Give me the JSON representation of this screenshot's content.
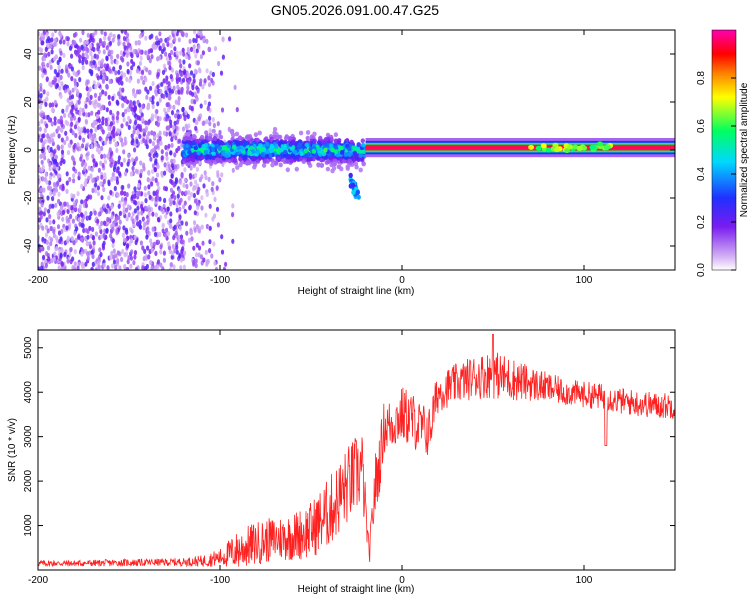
{
  "title": "GN05.2026.091.00.47.G25",
  "chart_data": [
    {
      "type": "heatmap",
      "title": "GN05.2026.091.00.47.G25",
      "xlabel": "Height of straight line (km)",
      "ylabel": "Frequency (Hz)",
      "xlim": [
        -200,
        150
      ],
      "ylim": [
        -50,
        50
      ],
      "xticks": [
        -200,
        -100,
        0,
        100
      ],
      "yticks": [
        -40,
        -20,
        0,
        20,
        40
      ],
      "colorbar": {
        "label": "Normalized spectral amplitude",
        "range": [
          0.0,
          1.0
        ],
        "ticks": [
          "0.0",
          "0.2",
          "0.4",
          "0.6",
          "0.8"
        ],
        "colors": [
          "#e6d0f5",
          "#7a1cf0",
          "#3030ff",
          "#00c8ff",
          "#00ff80",
          "#ffff00",
          "#ff8000",
          "#ff0000",
          "#ff00a0"
        ]
      },
      "features": [
        {
          "name": "noise",
          "x_range": [
            -200,
            -100
          ],
          "f_range": [
            -50,
            50
          ],
          "amplitude": [
            0.05,
            0.25
          ]
        },
        {
          "name": "onset",
          "x_range": [
            -120,
            -20
          ],
          "f_center": 0,
          "f_spread": 6,
          "amplitude": [
            0.2,
            0.5
          ]
        },
        {
          "name": "side-branch",
          "x": [
            -28,
            -24
          ],
          "f": [
            -12,
            -20
          ],
          "amplitude": 0.4
        },
        {
          "name": "carrier",
          "x_range": [
            -20,
            150
          ],
          "f_center": 1,
          "f_spread": 1.5,
          "amplitude": [
            0.85,
            1.0
          ]
        }
      ]
    },
    {
      "type": "line",
      "xlabel": "Height of straight line (km)",
      "ylabel": "SNR (10 * v/v)",
      "xlim": [
        -200,
        150
      ],
      "ylim": [
        0,
        5400
      ],
      "xticks": [
        -200,
        -100,
        0,
        100
      ],
      "yticks": [
        1000,
        2000,
        3000,
        4000,
        5000
      ],
      "color": "#ff2020",
      "series": [
        {
          "name": "SNR",
          "x": [
            -200,
            -180,
            -160,
            -140,
            -120,
            -110,
            -100,
            -90,
            -80,
            -70,
            -60,
            -50,
            -40,
            -30,
            -22,
            -18,
            -15,
            -12,
            -10,
            -5,
            0,
            5,
            10,
            15,
            18,
            20,
            25,
            30,
            40,
            50,
            60,
            70,
            80,
            90,
            100,
            110,
            115,
            120,
            130,
            140,
            150
          ],
          "mean": [
            150,
            150,
            160,
            170,
            180,
            200,
            280,
            450,
            600,
            700,
            750,
            900,
            1300,
            1900,
            2300,
            300,
            1800,
            2500,
            3200,
            3300,
            3500,
            3400,
            3200,
            3100,
            3700,
            4000,
            4100,
            4200,
            4350,
            4400,
            4300,
            4200,
            4100,
            4000,
            3950,
            3900,
            3850,
            3800,
            3750,
            3700,
            3700
          ],
          "noise": [
            70,
            70,
            80,
            80,
            90,
            130,
            200,
            450,
            500,
            500,
            550,
            650,
            800,
            900,
            900,
            200,
            800,
            700,
            600,
            600,
            650,
            650,
            600,
            600,
            500,
            450,
            450,
            450,
            500,
            550,
            500,
            400,
            350,
            300,
            300,
            300,
            300,
            300,
            300,
            300,
            300
          ]
        }
      ],
      "annotations": [
        {
          "x": 50,
          "y": 5300,
          "text": ""
        }
      ]
    }
  ]
}
